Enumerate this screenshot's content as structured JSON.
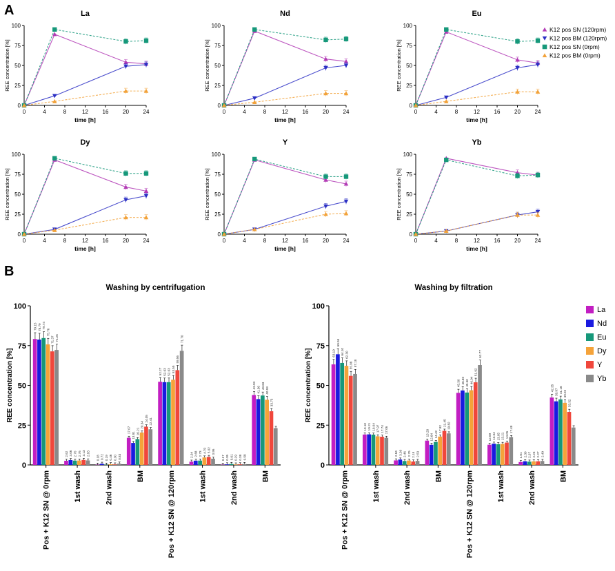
{
  "panel_labels": [
    "A",
    "B"
  ],
  "panel_a": {
    "xlabel": "time [h]",
    "ylabel": "REE concentration [%]",
    "x_ticks": [
      0,
      4,
      8,
      12,
      16,
      20,
      24
    ],
    "y_ticks": [
      0,
      25,
      50,
      75,
      100
    ],
    "legend": [
      {
        "label": "K12 pos SN (120rpm)",
        "marker": "triangle-up",
        "color": "#b23ab5"
      },
      {
        "label": "K12 pos BM (120rpm)",
        "marker": "triangle-down",
        "color": "#2b2fc4"
      },
      {
        "label": "K12 pos SN (0rpm)",
        "marker": "square",
        "color": "#16987a"
      },
      {
        "label": "K12 pos BM (0rpm)",
        "marker": "triangle-up",
        "color": "#f2a23a"
      }
    ]
  },
  "panel_b": {
    "ylabel": "REE concentration [%]",
    "y_ticks": [
      0,
      25,
      50,
      75,
      100
    ],
    "legend": [
      {
        "label": "La",
        "color": "#c21ec2"
      },
      {
        "label": "Nd",
        "color": "#1a1ae0"
      },
      {
        "label": "Eu",
        "color": "#16987a"
      },
      {
        "label": "Dy",
        "color": "#f5a33a"
      },
      {
        "label": "Y",
        "color": "#f0473c"
      },
      {
        "label": "Yb",
        "color": "#8a8a8a"
      }
    ]
  },
  "chart_data": [
    {
      "type": "line",
      "title": "La",
      "xlabel": "time [h]",
      "ylabel": "REE concentration [%]",
      "xlim": [
        0,
        24
      ],
      "ylim": [
        0,
        100
      ],
      "x": [
        0,
        6,
        20,
        24
      ],
      "series": [
        {
          "name": "K12 pos SN (120rpm)",
          "values": [
            0,
            89,
            54,
            52
          ]
        },
        {
          "name": "K12 pos BM (120rpm)",
          "values": [
            0,
            12,
            49,
            51
          ]
        },
        {
          "name": "K12 pos SN (0rpm)",
          "values": [
            0,
            95,
            80,
            81
          ]
        },
        {
          "name": "K12 pos BM (0rpm)",
          "values": [
            0,
            5,
            18,
            18
          ]
        }
      ]
    },
    {
      "type": "line",
      "title": "Nd",
      "xlabel": "time [h]",
      "ylabel": "REE concentration [%]",
      "xlim": [
        0,
        24
      ],
      "ylim": [
        0,
        100
      ],
      "x": [
        0,
        6,
        20,
        24
      ],
      "series": [
        {
          "name": "K12 pos SN (120rpm)",
          "values": [
            0,
            93,
            58,
            55
          ]
        },
        {
          "name": "K12 pos BM (120rpm)",
          "values": [
            0,
            9,
            47,
            50
          ]
        },
        {
          "name": "K12 pos SN (0rpm)",
          "values": [
            0,
            95,
            82,
            83
          ]
        },
        {
          "name": "K12 pos BM (0rpm)",
          "values": [
            0,
            4,
            15,
            15
          ]
        }
      ]
    },
    {
      "type": "line",
      "title": "Eu",
      "xlabel": "time [h]",
      "ylabel": "REE concentration [%]",
      "xlim": [
        0,
        24
      ],
      "ylim": [
        0,
        100
      ],
      "x": [
        0,
        6,
        20,
        24
      ],
      "series": [
        {
          "name": "K12 pos SN (120rpm)",
          "values": [
            0,
            92,
            57,
            53
          ]
        },
        {
          "name": "K12 pos BM (120rpm)",
          "values": [
            0,
            10,
            47,
            51
          ]
        },
        {
          "name": "K12 pos SN (0rpm)",
          "values": [
            0,
            95,
            80,
            81
          ]
        },
        {
          "name": "K12 pos BM (0rpm)",
          "values": [
            0,
            5,
            17,
            17
          ]
        }
      ]
    },
    {
      "type": "line",
      "title": "Dy",
      "xlabel": "time [h]",
      "ylabel": "REE concentration [%]",
      "xlim": [
        0,
        24
      ],
      "ylim": [
        0,
        100
      ],
      "x": [
        0,
        6,
        20,
        24
      ],
      "series": [
        {
          "name": "K12 pos SN (120rpm)",
          "values": [
            0,
            93,
            59,
            54
          ]
        },
        {
          "name": "K12 pos BM (120rpm)",
          "values": [
            0,
            6,
            43,
            48
          ]
        },
        {
          "name": "K12 pos SN (0rpm)",
          "values": [
            0,
            95,
            76,
            76
          ]
        },
        {
          "name": "K12 pos BM (0rpm)",
          "values": [
            0,
            5,
            21,
            21
          ]
        }
      ]
    },
    {
      "type": "line",
      "title": "Y",
      "xlabel": "time [h]",
      "ylabel": "REE concentration [%]",
      "xlim": [
        0,
        24
      ],
      "ylim": [
        0,
        100
      ],
      "x": [
        0,
        6,
        20,
        24
      ],
      "series": [
        {
          "name": "K12 pos SN (120rpm)",
          "values": [
            0,
            93,
            68,
            63
          ]
        },
        {
          "name": "K12 pos BM (120rpm)",
          "values": [
            0,
            6,
            35,
            41
          ]
        },
        {
          "name": "K12 pos SN (0rpm)",
          "values": [
            0,
            94,
            72,
            72
          ]
        },
        {
          "name": "K12 pos BM (0rpm)",
          "values": [
            0,
            6,
            25,
            26
          ]
        }
      ]
    },
    {
      "type": "line",
      "title": "Yb",
      "xlabel": "time [h]",
      "ylabel": "REE concentration [%]",
      "xlim": [
        0,
        24
      ],
      "ylim": [
        0,
        100
      ],
      "x": [
        0,
        6,
        20,
        24
      ],
      "series": [
        {
          "name": "K12 pos SN (120rpm)",
          "values": [
            0,
            95,
            77,
            74
          ]
        },
        {
          "name": "K12 pos BM (120rpm)",
          "values": [
            0,
            4,
            24,
            28
          ]
        },
        {
          "name": "K12 pos SN (0rpm)",
          "values": [
            0,
            93,
            73,
            74
          ]
        },
        {
          "name": "K12 pos BM (0rpm)",
          "values": [
            0,
            4,
            24,
            24
          ]
        }
      ]
    },
    {
      "type": "bar",
      "title": "Washing by centrifugation",
      "ylabel": "REE concentration [%]",
      "ylim": [
        0,
        100
      ],
      "categories": [
        "Pos + K12 SN @ 0rpm",
        "1st wash",
        "2nd wash",
        "BM",
        "Pos + K12 SN @ 120rpm",
        "1st wash",
        "2nd wash",
        "BM"
      ],
      "series": [
        {
          "name": "La",
          "values": [
            79.15,
            2.62,
            0.18,
            17.07,
            52.27,
            2.04,
            0.17,
            43.93
          ],
          "labels": [
            "79.15",
            "2.62",
            "0.18",
            "17.07",
            "52.27",
            "2.04",
            "0.17",
            "43.93"
          ]
        },
        {
          "name": "Nd",
          "values": [
            78.79,
            3.06,
            0.72,
            13.81,
            52.03,
            2.68,
            0.35,
            41.36
          ]
        },
        {
          "name": "Eu",
          "values": [
            79.74,
            2.7,
            0.19,
            16.21,
            52.03,
            2.73,
            0.61,
            43.63
          ]
        },
        {
          "name": "Dy",
          "values": [
            75.76,
            2.76,
            0.46,
            20.34,
            53.55,
            4.7,
            0.29,
            40.93
          ]
        },
        {
          "name": "Y",
          "values": [
            71.37,
            3.13,
            0.3,
            24.05,
            59.56,
            5.02,
            0.38,
            33.73
          ]
        },
        {
          "name": "Yb",
          "values": [
            72.26,
            2.83,
            0.83,
            22.41,
            71.7,
            3.95,
            0.58,
            23.1
          ]
        }
      ],
      "value_labels": [
        [
          "79.15",
          "78.79",
          "79.74",
          "75.76",
          "71.37",
          "72.26"
        ],
        [
          "2.62",
          "3.06",
          "2.70",
          "2.76",
          "3.13",
          "2.83"
        ],
        [
          "0.18",
          "0.72",
          "0.19",
          "0.46",
          "0.30",
          "0.83"
        ],
        [
          "17.07",
          "13.81",
          "16.21",
          "20.34",
          "24.05",
          "22.41"
        ],
        [
          "52.27",
          "52.03",
          "52.03",
          "53.55",
          "59.56",
          "71.70"
        ],
        [
          "2.04",
          "2.68",
          "2.73",
          "4.70",
          "5.02",
          "3.95"
        ],
        [
          "0.17",
          "0.35",
          "0.61",
          "0.29",
          "0.38",
          "0.58"
        ],
        [
          "43.93",
          "41.36",
          "43.63",
          "40.93",
          "33.73",
          ""
        ]
      ]
    },
    {
      "type": "bar",
      "title": "Washing by filtration",
      "ylabel": "REE concentration [%]",
      "ylim": [
        0,
        100
      ],
      "categories": [
        "Pos + K12 SN @ 0rpm",
        "1st wash",
        "2nd wash",
        "BM",
        "Pos + K12 SN @ 120rpm",
        "1st wash",
        "2nd wash",
        "BM"
      ],
      "series": [
        {
          "name": "La",
          "values": [
            63.19,
            19.1,
            2.84,
            15.28,
            45.3,
            12.69,
            1.81,
            42.35
          ]
        },
        {
          "name": "Nd",
          "values": [
            69.55,
            19.21,
            3.39,
            12.64,
            46.8,
            13.34,
            2.3,
            39.97
          ]
        },
        {
          "name": "Eu",
          "values": [
            64.1,
            19.04,
            2.46,
            14.42,
            45.5,
            13.05,
            2.07,
            41.18
          ]
        },
        {
          "name": "Dy",
          "values": [
            62.3,
            17.97,
            2.76,
            17.82,
            46.94,
            13.21,
            2.23,
            39.02
          ]
        },
        {
          "name": "Y",
          "values": [
            55.98,
            17.74,
            2.15,
            21.45,
            51.92,
            14.05,
            2.27,
            33.32
          ]
        },
        {
          "name": "Yb",
          "values": [
            57.18,
            17.06,
            2.53,
            19.82,
            62.77,
            17.48,
            2.49,
            23.5
          ]
        }
      ],
      "value_labels": [
        [
          "63.19",
          "69.55",
          "64.10",
          "62.30",
          "55.98",
          "57.18"
        ],
        [
          "19.10",
          "19.21",
          "19.04",
          "17.97",
          "17.74",
          "17.06"
        ],
        [
          "2.84",
          "3.39",
          "2.46",
          "2.76",
          "2.15",
          "2.53"
        ],
        [
          "15.28",
          "12.64",
          "14.42",
          "17.82",
          "21.45",
          "19.82"
        ],
        [
          "45.30",
          "46.80",
          "45.50",
          "46.94",
          "51.92",
          "62.77"
        ],
        [
          "12.69",
          "13.34",
          "13.05",
          "13.21",
          "14.05",
          "17.48"
        ],
        [
          "1.81",
          "2.30",
          "2.07",
          "2.23",
          "2.27",
          "2.49"
        ],
        [
          "42.35",
          "39.97",
          "41.18",
          "39.02",
          "33.32",
          ""
        ]
      ]
    }
  ]
}
